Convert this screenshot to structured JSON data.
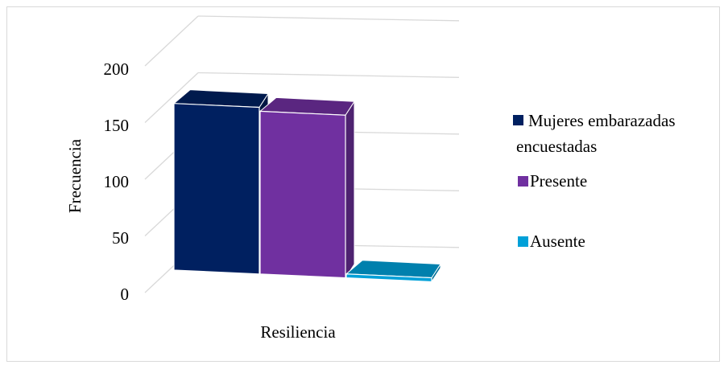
{
  "chart_data": {
    "type": "bar",
    "style": "3d-clustered-column",
    "categories": [
      "Resiliencia"
    ],
    "series": [
      {
        "name": "Mujeres embarazadas encuestadas",
        "values": [
          169
        ],
        "color": "#002060"
      },
      {
        "name": "Presente",
        "values": [
          165
        ],
        "color": "#7030A0"
      },
      {
        "name": "Ausente",
        "values": [
          4
        ],
        "color": "#00A0D8"
      }
    ],
    "xlabel": "Resiliencia",
    "ylabel": "Frecuencia",
    "ylim": [
      0,
      200
    ],
    "yticks": [
      "0",
      "50",
      "100",
      "150",
      "200"
    ],
    "grid": true,
    "legend_position": "right",
    "legend_labels": {
      "mujeres_line1": "Mujeres embarazadas",
      "mujeres_line2": "encuestadas",
      "presente": "Presente",
      "ausente": "Ausente"
    }
  }
}
